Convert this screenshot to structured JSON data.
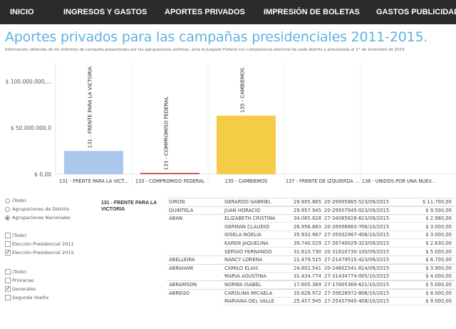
{
  "nav": {
    "items": [
      {
        "label": "INICIO",
        "active": false
      },
      {
        "label": "INGRESOS Y GASTOS",
        "active": false
      },
      {
        "label": "APORTES PRIVADOS",
        "active": true
      },
      {
        "label": "IMPRESIÓN DE BOLETAS",
        "active": false
      },
      {
        "label": "GASTOS PUBLICIDAD",
        "active": false
      }
    ]
  },
  "header": {
    "title": "Aportes privados para las campañas presidenciales 2011-2015.",
    "subtitle": "Información obtenida de los informes de campaña presentados por las agrupaciones políticas, ante el Juzgado Federal con competencia electoral de cada distrito y actualizada al 1° de diciembre de 2015."
  },
  "chart_data": {
    "type": "bar",
    "title": "",
    "xlabel": "",
    "ylabel": "",
    "ylim": [
      0,
      120000000
    ],
    "ytick_labels": [
      "$ 100.000.000,...",
      "$ 50.000.000,0",
      "$ 0,00"
    ],
    "yticks": [
      100000000,
      50000000,
      0
    ],
    "categories": [
      "131 - FRENTE PARA LA VICT...",
      "133 - COMPROMISO FEDERAL",
      "135 - CAMBIEMOS",
      "137 - FRENTE DE IZQUIERDA ...",
      "138 - UNIDOS POR UNA NUEV..."
    ],
    "bar_labels": [
      "131 - FRENTE PARA LA VICTORIA",
      "133 - COMPROMISO FEDERAL",
      "135 - CAMBIEMOS",
      "",
      ""
    ],
    "values": [
      25000000,
      1200000,
      63000000,
      0,
      0
    ],
    "colors": [
      "#a9c8ec",
      "#c0392b",
      "#f4cc46",
      "#cccccc",
      "#cccccc"
    ]
  },
  "filters": {
    "distrito": [
      {
        "label": "(Todo)",
        "selected": false
      },
      {
        "label": "Agrupaciones de Distrito",
        "selected": false
      },
      {
        "label": "Agrupaciones Nacionales",
        "selected": true
      }
    ],
    "eleccion": [
      {
        "label": "(Todo)",
        "checked": false
      },
      {
        "label": "Elección Presidencial 2011",
        "checked": false
      },
      {
        "label": "Elección Presidencial 2015",
        "checked": true
      }
    ],
    "tipo": [
      {
        "label": "(Todo)",
        "checked": false
      },
      {
        "label": "Primarias",
        "checked": false
      },
      {
        "label": "Generales",
        "checked": true
      },
      {
        "label": "Segunda Vuelta",
        "checked": false
      }
    ]
  },
  "table": {
    "group_title": "131 - FRENTE PARA LA VICTORIA",
    "rows": [
      {
        "apellido": "GIRON",
        "nombre": "GERARDO GABRIEL",
        "dni": "29.905.865",
        "cuit": "20-29905865-5",
        "fecha": "23/09/2015",
        "monto": "$ 11.700,00"
      },
      {
        "apellido": "QUINTELA",
        "nombre": "JUAN HORACIO",
        "dni": "29.957.945",
        "cuit": "20-29957945-0",
        "fecha": "23/09/2015",
        "monto": "$ 9.500,00"
      },
      {
        "apellido": "ABAN",
        "nombre": "ELIZABETH CRISTINA",
        "dni": "34.065.828",
        "cuit": "27-34065828-6",
        "fecha": "23/09/2015",
        "monto": "$ 2.980,00"
      },
      {
        "apellido": "",
        "nombre": "GERMAN CLAUDIO",
        "dni": "26.956.883",
        "cuit": "20-26956883-7",
        "fecha": "06/10/2015",
        "monto": "$ 3.000,00"
      },
      {
        "apellido": "",
        "nombre": "GISELA NOELIA",
        "dni": "35.932.967",
        "cuit": "27-35932967-4",
        "fecha": "06/10/2015",
        "monto": "$ 3.000,00"
      },
      {
        "apellido": "",
        "nombre": "KAREN JAQUELINA",
        "dni": "39.740.029",
        "cuit": "27-39740029-3",
        "fecha": "23/09/2015",
        "monto": "$ 2.630,00"
      },
      {
        "apellido": "",
        "nombre": "SERGIO FERNANDO",
        "dni": "31.810.730",
        "cuit": "20-31810730-1",
        "fecha": "30/09/2015",
        "monto": "$ 5.000,00"
      },
      {
        "apellido": "ABELLEIRA",
        "nombre": "NANCY LORENA",
        "dni": "21.479.515",
        "cuit": "27-21479515-4",
        "fecha": "23/09/2015",
        "monto": "$ 6.700,00"
      },
      {
        "apellido": "ABRAHAM",
        "nombre": "CAMILO ELIAS",
        "dni": "24.802.541",
        "cuit": "20-24802541-8",
        "fecha": "14/09/2015",
        "monto": "$ 3.900,00"
      },
      {
        "apellido": "",
        "nombre": "MARIA AGUSTINA",
        "dni": "31.434.774",
        "cuit": "27-31434774-0",
        "fecha": "05/10/2015",
        "monto": "$ 4.000,00"
      },
      {
        "apellido": "ABRAMSON",
        "nombre": "NORMA ISABEL",
        "dni": "17.605.369",
        "cuit": "27-17605369-6",
        "fecha": "21/10/2015",
        "monto": "$ 5.000,00"
      },
      {
        "apellido": "ABREGO",
        "nombre": "CAROLINA MICAELA",
        "dni": "35.628.972",
        "cuit": "27-35628972-8",
        "fecha": "06/10/2015",
        "monto": "$ 8.000,00"
      },
      {
        "apellido": "",
        "nombre": "MARIANA DEL VALLE",
        "dni": "25.457.945",
        "cuit": "27-25457945-4",
        "fecha": "08/10/2015",
        "monto": "$ 9.000,00"
      }
    ]
  }
}
